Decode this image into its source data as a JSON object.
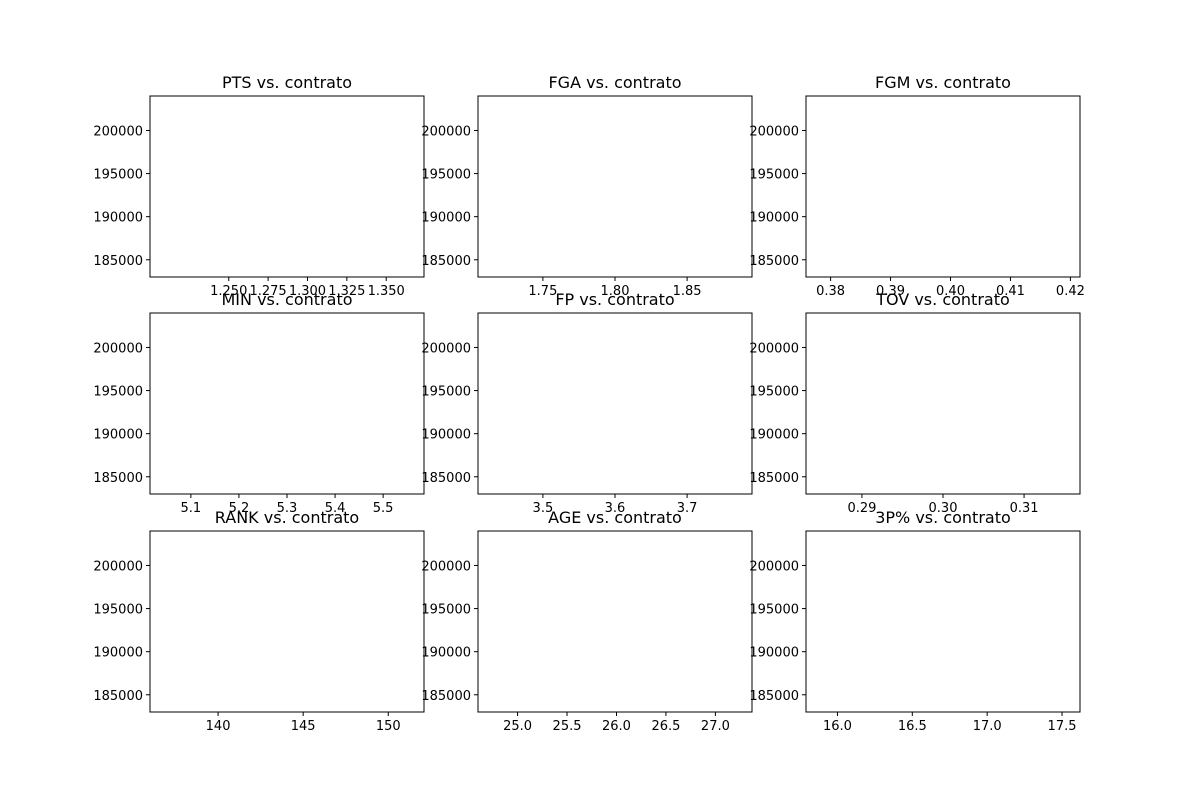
{
  "chart_data": [
    {
      "type": "scatter",
      "title": "PTS vs. contrato",
      "xlabel": "",
      "ylabel": "",
      "xlim": [
        1.2,
        1.374
      ],
      "ylim": [
        183000,
        204000
      ],
      "xticks": [
        1.25,
        1.275,
        1.3,
        1.325,
        1.35
      ],
      "xtick_labels": [
        "1.250",
        "1.275",
        "1.300",
        "1.325",
        "1.350"
      ],
      "yticks": [
        185000,
        190000,
        195000,
        200000
      ],
      "ytick_labels": [
        "185000",
        "190000",
        "195000",
        "200000"
      ],
      "series": [],
      "grid": false
    },
    {
      "type": "scatter",
      "title": "FGA vs. contrato",
      "xlabel": "",
      "ylabel": "",
      "xlim": [
        1.705,
        1.895
      ],
      "ylim": [
        183000,
        204000
      ],
      "xticks": [
        1.75,
        1.8,
        1.85
      ],
      "xtick_labels": [
        "1.75",
        "1.80",
        "1.85"
      ],
      "yticks": [
        185000,
        190000,
        195000,
        200000
      ],
      "ytick_labels": [
        "185000",
        "190000",
        "195000",
        "200000"
      ],
      "series": [],
      "grid": false
    },
    {
      "type": "scatter",
      "title": "FGM vs. contrato",
      "xlabel": "",
      "ylabel": "",
      "xlim": [
        0.3759,
        0.4216
      ],
      "ylim": [
        183000,
        204000
      ],
      "xticks": [
        0.38,
        0.39,
        0.4,
        0.41,
        0.42
      ],
      "xtick_labels": [
        "0.38",
        "0.39",
        "0.40",
        "0.41",
        "0.42"
      ],
      "yticks": [
        185000,
        190000,
        195000,
        200000
      ],
      "ytick_labels": [
        "185000",
        "190000",
        "195000",
        "200000"
      ],
      "series": [],
      "grid": false
    },
    {
      "type": "scatter",
      "title": "MIN vs. contrato",
      "xlabel": "",
      "ylabel": "",
      "xlim": [
        5.015,
        5.585
      ],
      "ylim": [
        183000,
        204000
      ],
      "xticks": [
        5.1,
        5.2,
        5.3,
        5.4,
        5.5
      ],
      "xtick_labels": [
        "5.1",
        "5.2",
        "5.3",
        "5.4",
        "5.5"
      ],
      "yticks": [
        185000,
        190000,
        195000,
        200000
      ],
      "ytick_labels": [
        "185000",
        "190000",
        "195000",
        "200000"
      ],
      "series": [],
      "grid": false
    },
    {
      "type": "scatter",
      "title": "FP vs. contrato",
      "xlabel": "",
      "ylabel": "",
      "xlim": [
        3.41,
        3.79
      ],
      "ylim": [
        183000,
        204000
      ],
      "xticks": [
        3.5,
        3.6,
        3.7
      ],
      "xtick_labels": [
        "3.5",
        "3.6",
        "3.7"
      ],
      "yticks": [
        185000,
        190000,
        195000,
        200000
      ],
      "ytick_labels": [
        "185000",
        "190000",
        "195000",
        "200000"
      ],
      "series": [],
      "grid": false
    },
    {
      "type": "scatter",
      "title": "TOV vs. contrato",
      "xlabel": "",
      "ylabel": "",
      "xlim": [
        0.2831,
        0.3169
      ],
      "ylim": [
        183000,
        204000
      ],
      "xticks": [
        0.29,
        0.3,
        0.31
      ],
      "xtick_labels": [
        "0.29",
        "0.30",
        "0.31"
      ],
      "yticks": [
        185000,
        190000,
        195000,
        200000
      ],
      "ytick_labels": [
        "185000",
        "190000",
        "195000",
        "200000"
      ],
      "series": [],
      "grid": false
    },
    {
      "type": "scatter",
      "title": "RANK vs. contrato",
      "xlabel": "",
      "ylabel": "",
      "xlim": [
        136.0,
        152.1
      ],
      "ylim": [
        183000,
        204000
      ],
      "xticks": [
        140,
        145,
        150
      ],
      "xtick_labels": [
        "140",
        "145",
        "150"
      ],
      "yticks": [
        185000,
        190000,
        195000,
        200000
      ],
      "ytick_labels": [
        "185000",
        "190000",
        "195000",
        "200000"
      ],
      "series": [],
      "grid": false
    },
    {
      "type": "scatter",
      "title": "AGE vs. contrato",
      "xlabel": "",
      "ylabel": "",
      "xlim": [
        24.6,
        27.37
      ],
      "ylim": [
        183000,
        204000
      ],
      "xticks": [
        25.0,
        25.5,
        26.0,
        26.5,
        27.0
      ],
      "xtick_labels": [
        "25.0",
        "25.5",
        "26.0",
        "26.5",
        "27.0"
      ],
      "yticks": [
        185000,
        190000,
        195000,
        200000
      ],
      "ytick_labels": [
        "185000",
        "190000",
        "195000",
        "200000"
      ],
      "series": [],
      "grid": false
    },
    {
      "type": "scatter",
      "title": "3P% vs. contrato",
      "xlabel": "",
      "ylabel": "",
      "xlim": [
        15.79,
        17.62
      ],
      "ylim": [
        183000,
        204000
      ],
      "xticks": [
        16.0,
        16.5,
        17.0,
        17.5
      ],
      "xtick_labels": [
        "16.0",
        "16.5",
        "17.0",
        "17.5"
      ],
      "yticks": [
        185000,
        190000,
        195000,
        200000
      ],
      "ytick_labels": [
        "185000",
        "190000",
        "195000",
        "200000"
      ],
      "series": [],
      "grid": false
    }
  ]
}
